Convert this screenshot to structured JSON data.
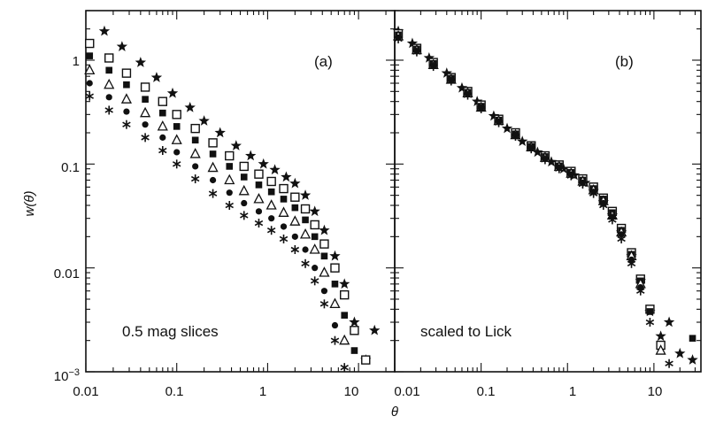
{
  "chart_data": [
    {
      "type": "scatter",
      "panel_label": "(a)",
      "annotation": "0.5 mag slices",
      "xlabel": "θ",
      "ylabel": "w(θ)",
      "xscale": "log",
      "yscale": "log",
      "xlim": [
        0.01,
        25
      ],
      "ylim": [
        0.001,
        3
      ],
      "xticklabels": [
        "0.01",
        "0.1",
        "1",
        "10"
      ],
      "yticklabels": [
        "10^-3",
        "0.01",
        "0.1",
        "1"
      ],
      "series": [
        {
          "marker": "star",
          "x": [
            0.016,
            0.025,
            0.04,
            0.06,
            0.09,
            0.14,
            0.2,
            0.3,
            0.45,
            0.65,
            0.9,
            1.2,
            1.6,
            2.0,
            2.6,
            3.3,
            4.2,
            5.5,
            7.0,
            9.0,
            12,
            15
          ],
          "y": [
            1.9,
            1.35,
            0.95,
            0.68,
            0.48,
            0.35,
            0.26,
            0.2,
            0.15,
            0.12,
            0.1,
            0.088,
            0.075,
            0.065,
            0.05,
            0.035,
            0.023,
            0.013,
            0.007,
            0.003,
            0.0013,
            0.0025
          ]
        },
        {
          "marker": "open-square",
          "x": [
            0.011,
            0.018,
            0.028,
            0.045,
            0.07,
            0.1,
            0.16,
            0.25,
            0.38,
            0.55,
            0.8,
            1.1,
            1.5,
            2.0,
            2.6,
            3.3,
            4.2,
            5.5,
            7.0,
            9.0,
            12
          ],
          "y": [
            1.45,
            1.05,
            0.75,
            0.55,
            0.4,
            0.3,
            0.22,
            0.16,
            0.12,
            0.095,
            0.08,
            0.068,
            0.058,
            0.048,
            0.037,
            0.026,
            0.017,
            0.01,
            0.0055,
            0.0025,
            0.0013
          ]
        },
        {
          "marker": "filled-square",
          "x": [
            0.011,
            0.018,
            0.028,
            0.045,
            0.07,
            0.1,
            0.16,
            0.25,
            0.38,
            0.55,
            0.8,
            1.1,
            1.5,
            2.0,
            2.6,
            3.3,
            4.2,
            5.5,
            7.0,
            9.0
          ],
          "y": [
            1.1,
            0.8,
            0.58,
            0.42,
            0.31,
            0.23,
            0.17,
            0.125,
            0.095,
            0.075,
            0.063,
            0.054,
            0.046,
            0.038,
            0.029,
            0.02,
            0.013,
            0.007,
            0.0035,
            0.0016
          ]
        },
        {
          "marker": "open-triangle",
          "x": [
            0.011,
            0.018,
            0.028,
            0.045,
            0.07,
            0.1,
            0.16,
            0.25,
            0.38,
            0.55,
            0.8,
            1.1,
            1.5,
            2.0,
            2.6,
            3.3,
            4.2,
            5.5,
            7.0
          ],
          "y": [
            0.8,
            0.58,
            0.42,
            0.31,
            0.23,
            0.17,
            0.125,
            0.092,
            0.07,
            0.055,
            0.046,
            0.04,
            0.034,
            0.028,
            0.021,
            0.015,
            0.009,
            0.0045,
            0.002
          ]
        },
        {
          "marker": "filled-circle",
          "x": [
            0.011,
            0.018,
            0.028,
            0.045,
            0.07,
            0.1,
            0.16,
            0.25,
            0.38,
            0.55,
            0.8,
            1.1,
            1.5,
            2.0,
            2.6,
            3.3,
            4.2,
            5.5
          ],
          "y": [
            0.6,
            0.44,
            0.32,
            0.24,
            0.18,
            0.13,
            0.095,
            0.07,
            0.053,
            0.042,
            0.035,
            0.03,
            0.025,
            0.02,
            0.015,
            0.01,
            0.006,
            0.0028
          ]
        },
        {
          "marker": "asterisk",
          "x": [
            0.011,
            0.018,
            0.028,
            0.045,
            0.07,
            0.1,
            0.16,
            0.25,
            0.38,
            0.55,
            0.8,
            1.1,
            1.5,
            2.0,
            2.6,
            3.3,
            4.2,
            5.5,
            7.0
          ],
          "y": [
            0.45,
            0.33,
            0.24,
            0.18,
            0.135,
            0.1,
            0.072,
            0.052,
            0.04,
            0.032,
            0.027,
            0.023,
            0.019,
            0.015,
            0.011,
            0.0075,
            0.0045,
            0.002,
            0.0011
          ]
        }
      ]
    },
    {
      "type": "scatter",
      "panel_label": "(b)",
      "annotation": "scaled to Lick",
      "xlabel": "θ",
      "ylabel": "w(θ)",
      "xscale": "log",
      "yscale": "log",
      "xlim": [
        0.01,
        35
      ],
      "ylim": [
        0.001,
        3
      ],
      "xticklabels": [
        "0.01",
        "0.1",
        "1",
        "10"
      ],
      "yticklabels": [],
      "series": [
        {
          "marker": "star",
          "x": [
            0.011,
            0.016,
            0.025,
            0.04,
            0.06,
            0.09,
            0.14,
            0.2,
            0.3,
            0.45,
            0.65,
            0.9,
            1.2,
            1.6,
            2.0,
            2.6,
            3.3,
            4.2,
            5.5,
            7.0,
            9.0,
            12,
            15,
            20,
            28
          ],
          "y": [
            1.9,
            1.45,
            1.05,
            0.75,
            0.54,
            0.4,
            0.29,
            0.22,
            0.165,
            0.13,
            0.105,
            0.09,
            0.078,
            0.066,
            0.055,
            0.043,
            0.032,
            0.022,
            0.013,
            0.0075,
            0.0038,
            0.0022,
            0.003,
            0.0015,
            0.0013
          ]
        },
        {
          "marker": "open-square",
          "x": [
            0.011,
            0.018,
            0.028,
            0.045,
            0.07,
            0.1,
            0.16,
            0.25,
            0.38,
            0.55,
            0.8,
            1.1,
            1.5,
            2.0,
            2.6,
            3.3,
            4.2,
            5.5,
            7.0,
            9.0,
            12
          ],
          "y": [
            1.8,
            1.3,
            0.95,
            0.68,
            0.5,
            0.37,
            0.27,
            0.2,
            0.15,
            0.12,
            0.098,
            0.085,
            0.072,
            0.06,
            0.047,
            0.035,
            0.024,
            0.014,
            0.0078,
            0.004,
            0.0018
          ]
        },
        {
          "marker": "filled-square",
          "x": [
            0.011,
            0.018,
            0.028,
            0.045,
            0.07,
            0.1,
            0.16,
            0.25,
            0.38,
            0.55,
            0.8,
            1.1,
            1.5,
            2.0,
            2.6,
            3.3,
            4.2,
            5.5,
            7.0,
            9.0,
            28
          ],
          "y": [
            1.75,
            1.28,
            0.93,
            0.67,
            0.49,
            0.36,
            0.265,
            0.195,
            0.148,
            0.118,
            0.096,
            0.083,
            0.07,
            0.058,
            0.046,
            0.034,
            0.023,
            0.0135,
            0.0075,
            0.0038,
            0.0021
          ]
        },
        {
          "marker": "open-triangle",
          "x": [
            0.011,
            0.018,
            0.028,
            0.045,
            0.07,
            0.1,
            0.16,
            0.25,
            0.38,
            0.55,
            0.8,
            1.1,
            1.5,
            2.0,
            2.6,
            3.3,
            4.2,
            5.5,
            7.0,
            12
          ],
          "y": [
            1.7,
            1.25,
            0.9,
            0.65,
            0.48,
            0.35,
            0.26,
            0.19,
            0.145,
            0.115,
            0.094,
            0.081,
            0.068,
            0.056,
            0.044,
            0.032,
            0.022,
            0.013,
            0.007,
            0.0016
          ]
        },
        {
          "marker": "filled-circle",
          "x": [
            0.011,
            0.018,
            0.028,
            0.045,
            0.07,
            0.1,
            0.16,
            0.25,
            0.38,
            0.55,
            0.8,
            1.1,
            1.5,
            2.0,
            2.6,
            3.3,
            4.2,
            5.5,
            7.0
          ],
          "y": [
            1.65,
            1.22,
            0.88,
            0.64,
            0.47,
            0.345,
            0.255,
            0.188,
            0.142,
            0.112,
            0.092,
            0.079,
            0.066,
            0.054,
            0.042,
            0.031,
            0.021,
            0.012,
            0.0065
          ]
        },
        {
          "marker": "asterisk",
          "x": [
            0.011,
            0.018,
            0.028,
            0.045,
            0.07,
            0.1,
            0.16,
            0.25,
            0.38,
            0.55,
            0.8,
            1.1,
            1.5,
            2.0,
            2.6,
            3.3,
            4.2,
            5.5,
            7.0,
            9.0,
            15
          ],
          "y": [
            1.6,
            1.2,
            0.87,
            0.63,
            0.46,
            0.34,
            0.25,
            0.185,
            0.14,
            0.11,
            0.09,
            0.077,
            0.064,
            0.052,
            0.04,
            0.029,
            0.019,
            0.011,
            0.006,
            0.003,
            0.0012
          ]
        }
      ]
    }
  ]
}
